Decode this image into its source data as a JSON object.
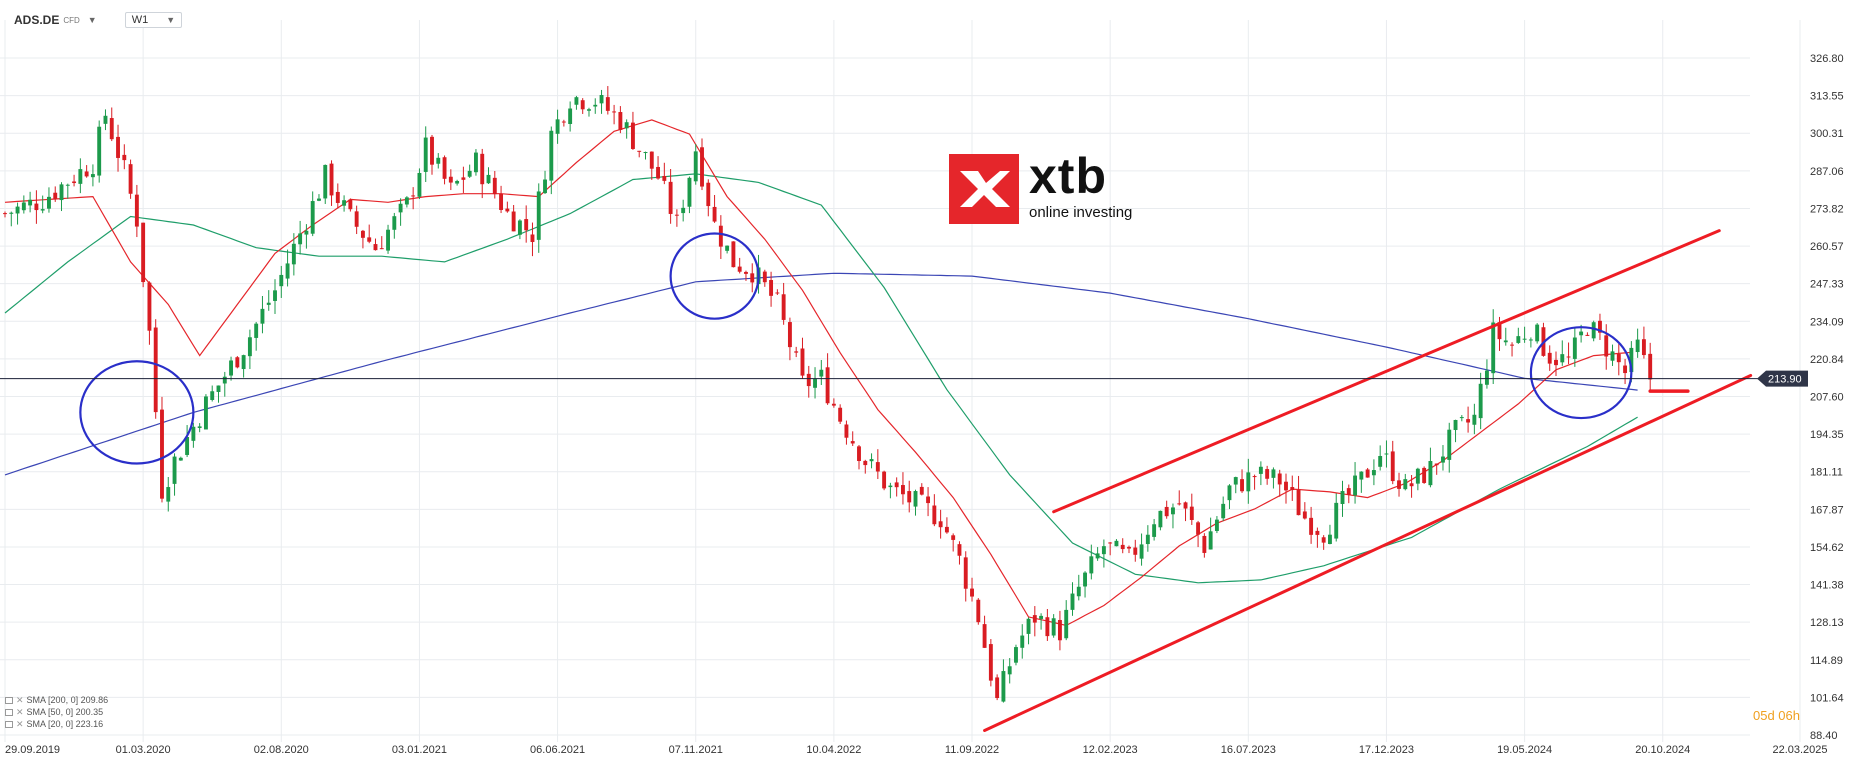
{
  "header": {
    "symbol": "ADS.DE",
    "symbol_badge": "CFD",
    "timeframe": "W1"
  },
  "logo": {
    "word": "xtb",
    "tagline": "online investing"
  },
  "countdown": "05d 06h",
  "legend": [
    {
      "label": "SMA [200, 0] 209.86",
      "color": "#3b46b5"
    },
    {
      "label": "SMA [50, 0] 200.35",
      "color": "#1f9e6a"
    },
    {
      "label": "SMA [20, 0] 223.16",
      "color": "#e5262b"
    }
  ],
  "colors": {
    "up_candle": "#1c9a4b",
    "down_candle": "#d91c22",
    "sma200": "#3b46b5",
    "sma50": "#1f9e6a",
    "sma20": "#e5262b",
    "trend_channel": "#ee1c24",
    "circle": "#2a2fc9",
    "price_line": "#1a1f36",
    "price_tag_bg": "#2f3548"
  },
  "chart_data": {
    "type": "candlestick",
    "title": "",
    "price_axis": {
      "ticks": [
        "326.80",
        "313.55",
        "300.31",
        "287.06",
        "273.82",
        "260.57",
        "247.33",
        "234.09",
        "220.84",
        "207.60",
        "194.35",
        "181.11",
        "167.87",
        "154.62",
        "141.38",
        "128.13",
        "114.89",
        "101.64",
        "88.40"
      ],
      "range": [
        88.4,
        326.8
      ]
    },
    "date_axis": {
      "ticks": [
        "29.09.2019",
        "01.03.2020",
        "02.08.2020",
        "03.01.2021",
        "06.06.2021",
        "07.11.2021",
        "10.04.2022",
        "11.09.2022",
        "12.02.2023",
        "16.07.2023",
        "17.12.2023",
        "19.05.2024",
        "20.10.2024",
        "22.03.2025"
      ],
      "range": [
        "2019-09-29",
        "2025-03-22"
      ]
    },
    "current_price": "213.90",
    "price_anchors": [
      [
        "2019-09-29",
        272
      ],
      [
        "2019-11-10",
        277
      ],
      [
        "2020-01-05",
        290
      ],
      [
        "2020-01-19",
        307
      ],
      [
        "2020-02-09",
        287
      ],
      [
        "2020-02-23",
        270
      ],
      [
        "2020-03-08",
        230
      ],
      [
        "2020-03-22",
        175
      ],
      [
        "2020-04-05",
        185
      ],
      [
        "2020-05-10",
        205
      ],
      [
        "2020-06-21",
        225
      ],
      [
        "2020-07-26",
        245
      ],
      [
        "2020-08-23",
        265
      ],
      [
        "2020-09-20",
        285
      ],
      [
        "2020-10-18",
        270
      ],
      [
        "2020-11-15",
        260
      ],
      [
        "2020-12-20",
        275
      ],
      [
        "2021-01-10",
        295
      ],
      [
        "2021-02-07",
        280
      ],
      [
        "2021-03-07",
        290
      ],
      [
        "2021-04-11",
        272
      ],
      [
        "2021-05-09",
        265
      ],
      [
        "2021-05-30",
        300
      ],
      [
        "2021-06-20",
        313
      ],
      [
        "2021-07-18",
        312
      ],
      [
        "2021-08-15",
        305
      ],
      [
        "2021-09-05",
        295
      ],
      [
        "2021-09-26",
        285
      ],
      [
        "2021-10-17",
        268
      ],
      [
        "2021-11-07",
        295
      ],
      [
        "2021-11-28",
        268
      ],
      [
        "2021-12-19",
        255
      ],
      [
        "2022-01-09",
        252
      ],
      [
        "2022-02-06",
        240
      ],
      [
        "2022-03-06",
        212
      ],
      [
        "2022-03-27",
        214
      ],
      [
        "2022-04-17",
        200
      ],
      [
        "2022-05-15",
        185
      ],
      [
        "2022-06-12",
        175
      ],
      [
        "2022-07-10",
        170
      ],
      [
        "2022-08-07",
        165
      ],
      [
        "2022-08-28",
        150
      ],
      [
        "2022-09-18",
        130
      ],
      [
        "2022-10-09",
        100
      ],
      [
        "2022-10-30",
        120
      ],
      [
        "2022-11-20",
        130
      ],
      [
        "2022-12-18",
        125
      ],
      [
        "2023-01-08",
        140
      ],
      [
        "2023-02-05",
        155
      ],
      [
        "2023-03-05",
        150
      ],
      [
        "2023-04-02",
        165
      ],
      [
        "2023-04-30",
        170
      ],
      [
        "2023-05-28",
        155
      ],
      [
        "2023-06-25",
        175
      ],
      [
        "2023-07-23",
        180
      ],
      [
        "2023-08-20",
        178
      ],
      [
        "2023-09-17",
        165
      ],
      [
        "2023-10-08",
        160
      ],
      [
        "2023-10-29",
        170
      ],
      [
        "2023-11-19",
        178
      ],
      [
        "2023-12-10",
        188
      ],
      [
        "2024-01-07",
        175
      ],
      [
        "2024-02-04",
        182
      ],
      [
        "2024-03-03",
        195
      ],
      [
        "2024-03-24",
        200
      ],
      [
        "2024-04-14",
        230
      ],
      [
        "2024-05-05",
        226
      ],
      [
        "2024-05-26",
        232
      ],
      [
        "2024-06-16",
        222
      ],
      [
        "2024-07-07",
        220
      ],
      [
        "2024-07-28",
        233
      ],
      [
        "2024-08-18",
        225
      ],
      [
        "2024-09-08",
        216
      ],
      [
        "2024-09-22",
        225
      ],
      [
        "2024-10-06",
        214
      ]
    ],
    "sma20": [
      [
        "2019-09-29",
        276
      ],
      [
        "2020-01-05",
        278
      ],
      [
        "2020-02-16",
        255
      ],
      [
        "2020-03-29",
        240
      ],
      [
        "2020-05-03",
        222
      ],
      [
        "2020-06-14",
        240
      ],
      [
        "2020-07-26",
        258
      ],
      [
        "2020-09-06",
        268
      ],
      [
        "2020-10-18",
        277
      ],
      [
        "2020-11-29",
        276
      ],
      [
        "2021-01-10",
        278
      ],
      [
        "2021-02-21",
        279
      ],
      [
        "2021-04-04",
        279
      ],
      [
        "2021-05-16",
        278
      ],
      [
        "2021-06-27",
        290
      ],
      [
        "2021-08-08",
        301
      ],
      [
        "2021-09-19",
        305
      ],
      [
        "2021-10-31",
        300
      ],
      [
        "2021-12-12",
        278
      ],
      [
        "2022-01-23",
        263
      ],
      [
        "2022-03-06",
        245
      ],
      [
        "2022-04-17",
        223
      ],
      [
        "2022-05-29",
        203
      ],
      [
        "2022-07-10",
        188
      ],
      [
        "2022-08-21",
        172
      ],
      [
        "2022-10-02",
        152
      ],
      [
        "2022-11-13",
        130
      ],
      [
        "2022-12-25",
        127
      ],
      [
        "2023-02-05",
        134
      ],
      [
        "2023-03-19",
        144
      ],
      [
        "2023-04-30",
        155
      ],
      [
        "2023-06-11",
        163
      ],
      [
        "2023-07-23",
        168
      ],
      [
        "2023-09-03",
        175
      ],
      [
        "2023-10-15",
        174
      ],
      [
        "2023-11-26",
        172
      ],
      [
        "2024-01-07",
        177
      ],
      [
        "2024-02-18",
        185
      ],
      [
        "2024-03-31",
        195
      ],
      [
        "2024-05-12",
        205
      ],
      [
        "2024-06-23",
        217
      ],
      [
        "2024-08-04",
        222
      ],
      [
        "2024-09-15",
        223.16
      ]
    ],
    "sma50": [
      [
        "2019-09-29",
        237
      ],
      [
        "2019-12-08",
        255
      ],
      [
        "2020-02-16",
        271
      ],
      [
        "2020-04-26",
        268
      ],
      [
        "2020-07-05",
        260
      ],
      [
        "2020-09-13",
        257
      ],
      [
        "2020-11-22",
        257
      ],
      [
        "2021-01-31",
        255
      ],
      [
        "2021-04-11",
        263
      ],
      [
        "2021-06-20",
        272
      ],
      [
        "2021-08-29",
        284
      ],
      [
        "2021-11-07",
        286
      ],
      [
        "2022-01-16",
        283
      ],
      [
        "2022-03-27",
        275
      ],
      [
        "2022-06-05",
        246
      ],
      [
        "2022-08-14",
        210
      ],
      [
        "2022-10-23",
        180
      ],
      [
        "2023-01-01",
        156
      ],
      [
        "2023-03-12",
        145
      ],
      [
        "2023-05-21",
        142
      ],
      [
        "2023-07-30",
        143
      ],
      [
        "2023-10-08",
        148
      ],
      [
        "2024-01-14",
        158
      ],
      [
        "2024-04-21",
        175
      ],
      [
        "2024-07-28",
        190
      ],
      [
        "2024-09-22",
        200.35
      ]
    ],
    "sma200": [
      [
        "2019-09-29",
        180
      ],
      [
        "2020-04-26",
        202
      ],
      [
        "2020-11-22",
        220
      ],
      [
        "2021-06-20",
        237
      ],
      [
        "2021-11-07",
        248
      ],
      [
        "2022-04-10",
        251
      ],
      [
        "2022-09-11",
        250
      ],
      [
        "2023-02-12",
        244
      ],
      [
        "2023-07-16",
        235
      ],
      [
        "2023-12-17",
        225
      ],
      [
        "2024-05-19",
        214
      ],
      [
        "2024-09-22",
        209.86
      ]
    ],
    "annotations": {
      "channel_upper": [
        [
          "2022-12-11",
          167
        ],
        [
          "2024-12-22",
          266
        ]
      ],
      "channel_lower": [
        [
          "2022-09-25",
          90
        ],
        [
          "2025-01-26",
          215
        ]
      ],
      "channel_mid_mark": [
        [
          "2024-10-06",
          209.5
        ],
        [
          "2024-11-17",
          209.5
        ]
      ],
      "circles": [
        {
          "center": [
            "2020-02-23",
            202
          ],
          "radius_weeks": 9,
          "radius_price": 18
        },
        {
          "center": [
            "2021-11-28",
            250
          ],
          "radius_weeks": 7,
          "radius_price": 15
        },
        {
          "center": [
            "2024-07-21",
            216
          ],
          "radius_weeks": 8,
          "radius_price": 16
        }
      ]
    }
  }
}
